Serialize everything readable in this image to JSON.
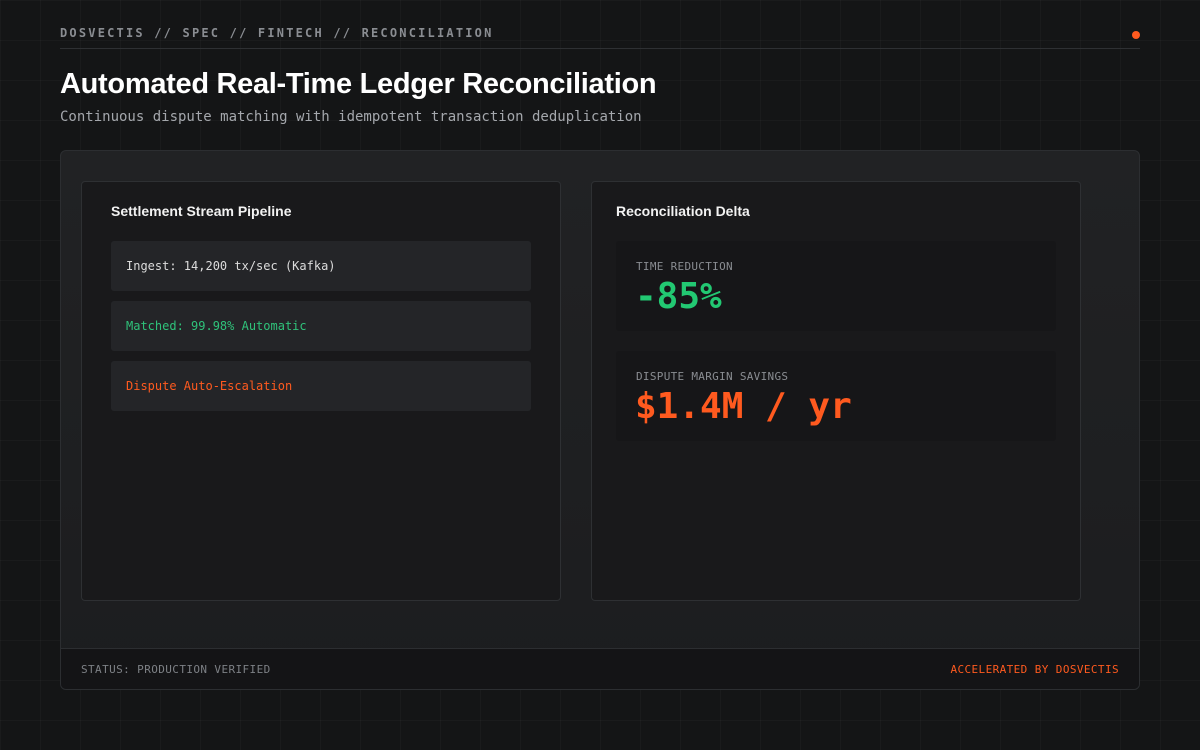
{
  "header": {
    "breadcrumb": "DOSVECTIS // SPEC // FINTECH // RECONCILIATION",
    "title": "Automated Real-Time Ledger Reconciliation",
    "subtitle": "Continuous dispute matching with idempotent transaction deduplication"
  },
  "pipeline": {
    "title": "Settlement Stream Pipeline",
    "rows": [
      {
        "label": "Ingest: 14,200 tx/sec (Kafka)",
        "color": "#dcdcdc"
      },
      {
        "label": "Matched: 99.98% Automatic",
        "color": "#2fc27a"
      },
      {
        "label": "Dispute Auto-Escalation",
        "color": "#ff5a1f"
      }
    ]
  },
  "delta": {
    "title": "Reconciliation Delta",
    "metrics": [
      {
        "label": "TIME REDUCTION",
        "value": "-85%",
        "color": "#22c872"
      },
      {
        "label": "DISPUTE MARGIN SAVINGS",
        "value": "$1.4M / yr",
        "color": "#ff5a1f"
      }
    ]
  },
  "footer": {
    "status": "STATUS: PRODUCTION VERIFIED",
    "credit": "ACCELERATED BY DOSVECTIS"
  },
  "colors": {
    "accent": "#ff5a1f",
    "success": "#22c872",
    "background": "#141516"
  }
}
